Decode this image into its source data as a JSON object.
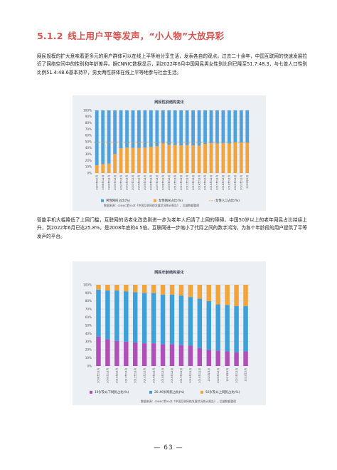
{
  "section": {
    "number": "5.1.2",
    "title": "线上用户平等发声，“小人物”大放异彩"
  },
  "paragraph1": "网民规模的扩大意味着更多元的用户群体可以在线上平等地分享生活，发表各自的观点。过去二十余年，中国互联网的快速发展拉近了网络空间中的性别和年龄差异。据CNNIC数据显示，到2022年6月中国网民男女性别比例已降至51.7:48.3，与七普人口性别比例51.4:48.6基本持平，男女两性群体在线上平等地参与社会生活。",
  "paragraph2": "智能手机大幅降低了上网门槛，互联网的适老化改造则进一步为老年人扫清了上网的障碍。中国50岁以上的老年网民占比持续上升，到2022年6月已达25.8%，是2008年底的4.5倍。互联网进一步缩小了代际之间的数字鸿沟，为各个年龄段的用户提供了平等发声的平台。",
  "chart1": {
    "title": "网民性别结构变化",
    "source": "数据来源：CNNIC第50次《中国互联网络发展状况统计报告》，后量数据整理"
  },
  "chart2": {
    "title": "网民年龄结构变化",
    "source": "数据来源：CNNIC第50次《中国互联网络发展状况统计报告》，后量数据整理"
  },
  "page_number": "— 63 —",
  "chart_data": [
    {
      "type": "bar",
      "stacked": true,
      "title": "网民性别结构变化",
      "categories": [
        "1997年10月",
        "1998年12月",
        "1999年12月",
        "2000年12月",
        "2001年12月",
        "2002年12月",
        "2003年12月",
        "2004年12月",
        "2005年12月",
        "2006年12月",
        "2007年12月",
        "2008年12月",
        "2009年12月",
        "2010年12月",
        "2011年12月",
        "2012年12月",
        "2013年12月",
        "2014年12月",
        "2015年12月",
        "2016年12月",
        "2017年12月",
        "2018年12月",
        "2019年12月",
        "2020年12月",
        "2021年12月",
        "2022年6月"
      ],
      "series": [
        {
          "name": "女性网民占比(%)",
          "color": "#f2a33a",
          "values": [
            12.3,
            14.3,
            15.0,
            30.4,
            39.5,
            40.7,
            40.2,
            40.2,
            40.9,
            41.7,
            42.8,
            47.2,
            45.2,
            44.8,
            44.1,
            44.8,
            44.0,
            43.6,
            46.6,
            47.6,
            47.0,
            47.3,
            47.0,
            48.9,
            48.5,
            48.3
          ]
        },
        {
          "name": "男性网民占比(%)",
          "color": "#4ea1dc",
          "values": [
            87.7,
            85.7,
            85.0,
            69.6,
            60.5,
            59.3,
            59.8,
            59.8,
            59.1,
            58.3,
            57.2,
            52.8,
            54.8,
            55.2,
            55.9,
            55.2,
            56.0,
            56.4,
            53.4,
            52.4,
            53.0,
            52.7,
            53.0,
            51.1,
            51.5,
            51.7
          ]
        }
      ],
      "reference_line": {
        "name": "女性人口占比(%)",
        "value": 48.6,
        "color": "#f2a33a"
      },
      "legend_order": [
        "男性网民占比(%)",
        "女性网民占比(%)",
        "女性人口占比(%)"
      ],
      "y_ticks": [
        "0%",
        "10%",
        "20%",
        "30%",
        "40%",
        "50%",
        "60%",
        "70%",
        "80%",
        "90%",
        "100%"
      ],
      "ylim": [
        0,
        100
      ],
      "grid": true,
      "legend": "bottom"
    },
    {
      "type": "bar",
      "stacked": true,
      "title": "网民年龄结构变化",
      "categories": [
        "2008年12月",
        "2009年12月",
        "2010年12月",
        "2011年12月",
        "2012年12月",
        "2013年12月",
        "2014年12月",
        "2015年12月",
        "2016年12月",
        "2017年12月",
        "2018年12月",
        "2019年12月",
        "2020年3月",
        "2020年12月",
        "2021年6月",
        "2021年12月",
        "2022年6月"
      ],
      "series": [
        {
          "name": "19岁及以下网民占比(%)",
          "color": "#b04fb8",
          "values": [
            36,
            33,
            31,
            30,
            29,
            28,
            28,
            27,
            27,
            26,
            25,
            22,
            20,
            19,
            18,
            17,
            18
          ]
        },
        {
          "name": "20-49岁网民占比(%)",
          "color": "#3ea0d8",
          "values": [
            58,
            60,
            62,
            62,
            62,
            62,
            62,
            61,
            61,
            61,
            60,
            61,
            60,
            57,
            57,
            57,
            56
          ]
        },
        {
          "name": "50岁及以上网民占比(%)",
          "color": "#f2a33a",
          "values": [
            6,
            7,
            7,
            8,
            9,
            10,
            10,
            12,
            12,
            13,
            15,
            17,
            20,
            24,
            25,
            26,
            26
          ]
        }
      ],
      "y_ticks": [
        "0%",
        "10%",
        "20%",
        "30%",
        "40%",
        "50%",
        "60%",
        "70%",
        "80%",
        "90%",
        "100%"
      ],
      "ylim": [
        0,
        100
      ],
      "grid": true,
      "legend": "bottom"
    }
  ]
}
